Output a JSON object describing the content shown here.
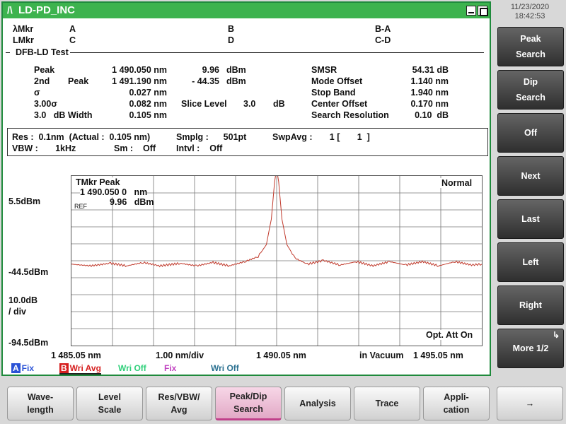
{
  "window": {
    "title": "LD-PD_INC",
    "logo": "/\\"
  },
  "datetime": {
    "date": "11/23/2020",
    "time": "18:42:53"
  },
  "markers": {
    "lambda_mkr": "λMkr",
    "l_mkr": "LMkr",
    "a": "A",
    "b": "B",
    "ba": "B-A",
    "c": "C",
    "d": "D",
    "cd": "C-D"
  },
  "section_title": "DFB-LD Test",
  "results": {
    "peak_label": "Peak",
    "peak_wl": "1 490.050 nm",
    "peak_val": "9.96",
    "peak_unit": "dBm",
    "second_label": "2nd",
    "second_label2": "Peak",
    "second_wl": "1 491.190 nm",
    "second_val": "- 44.35",
    "second_unit": "dBm",
    "sigma_label": "σ",
    "sigma_val": "0.027 nm",
    "sigma3_label": "3.00σ",
    "sigma3_val": "0.082 nm",
    "slice_label": "Slice Level",
    "slice_val": "3.0",
    "slice_unit": "dB",
    "width_label": "3.0   dB Width",
    "width_val": "0.105 nm",
    "smsr_label": "SMSR",
    "smsr_val": "54.31 dB",
    "mode_label": "Mode Offset",
    "mode_val": "1.140 nm",
    "stop_label": "Stop Band",
    "stop_val": "1.940 nm",
    "center_label": "Center Offset",
    "center_val": "0.170 nm",
    "search_label": "Search Resolution",
    "search_val": "0.10  dB"
  },
  "settings": {
    "res": "Res :  0.1nm  (Actual :  0.105 nm)",
    "smplg": "Smplg :      501pt",
    "swpavg": "SwpAvg :       1 [       1  ]",
    "vbw": "VBW :       1kHz",
    "sm": "Sm :    Off",
    "intvl": "Intvl :    Off"
  },
  "plot": {
    "y_top": "5.5dBm",
    "y_mid": "-44.5dBm",
    "y_bottom": "-94.5dBm",
    "y_div": "10.0dB",
    "y_div2": "/ div",
    "x_start": "1 485.05 nm",
    "x_div": "1.00 nm/div",
    "x_center": "1 490.05 nm",
    "x_medium": "in Vacuum",
    "x_end": "1 495.05 nm",
    "mode": "Normal",
    "opt_att": "Opt. Att On",
    "tmkr_label": "TMkr    Peak",
    "tmkr_wl": "1 490.050 0   nm",
    "tmkr_val": "9.96   dBm",
    "ref": "REF",
    "trace_color": "#c0392b"
  },
  "legend": [
    {
      "box": "A",
      "text": "Fix",
      "box_color": "#2a52d6",
      "text_color": "#2a52d6"
    },
    {
      "box": "B",
      "text": "Wri Avg",
      "box_color": "#d61f1f",
      "text_color": "#d61f1f"
    },
    {
      "box": "",
      "text": "Wri Off",
      "box_color": "",
      "text_color": "#2fd07a"
    },
    {
      "box": "",
      "text": "Fix",
      "box_color": "",
      "text_color": "#c040c0"
    },
    {
      "box": "",
      "text": "Wri Off",
      "box_color": "",
      "text_color": "#2a7090"
    }
  ],
  "softkeys": [
    {
      "line1": "Peak",
      "line2": "Search"
    },
    {
      "line1": "Dip",
      "line2": "Search"
    },
    {
      "line1": "Off",
      "line2": ""
    },
    {
      "line1": "Next",
      "line2": ""
    },
    {
      "line1": "Last",
      "line2": ""
    },
    {
      "line1": "Left",
      "line2": ""
    },
    {
      "line1": "Right",
      "line2": ""
    },
    {
      "line1": "More 1/2",
      "line2": "",
      "corner": "↳"
    }
  ],
  "bottom_buttons": [
    {
      "line1": "Wave-",
      "line2": "length"
    },
    {
      "line1": "Level",
      "line2": "Scale"
    },
    {
      "line1": "Res/VBW/",
      "line2": "Avg"
    },
    {
      "line1": "Peak/Dip",
      "line2": "Search"
    },
    {
      "line1": "Analysis",
      "line2": ""
    },
    {
      "line1": "Trace",
      "line2": ""
    },
    {
      "line1": "Appli-",
      "line2": "cation"
    },
    {
      "line1": "→",
      "line2": ""
    }
  ],
  "chart_data": {
    "type": "line",
    "xlabel": "",
    "ylabel": "",
    "xlim": [
      1485.05,
      1495.05
    ],
    "ylim": [
      -94.5,
      5.5
    ],
    "x": [
      1485.05,
      1485.5,
      1486.0,
      1486.4,
      1486.8,
      1487.2,
      1487.7,
      1488.1,
      1488.5,
      1488.9,
      1489.3,
      1489.6,
      1489.8,
      1489.92,
      1490.0,
      1490.05,
      1490.1,
      1490.18,
      1490.3,
      1490.5,
      1490.8,
      1491.19,
      1491.6,
      1492.0,
      1492.4,
      1492.8,
      1493.2,
      1493.6,
      1494.0,
      1494.4,
      1494.8,
      1495.05
    ],
    "y": [
      -46.5,
      -47.5,
      -46.0,
      -47.5,
      -45.5,
      -47.5,
      -46.0,
      -47.5,
      -45.5,
      -47.5,
      -44.8,
      -42.0,
      -35.0,
      -20.0,
      2.0,
      9.96,
      2.0,
      -20.0,
      -35.0,
      -43.0,
      -46.5,
      -44.35,
      -47.0,
      -45.0,
      -47.5,
      -45.0,
      -47.0,
      -45.0,
      -47.5,
      -45.0,
      -47.0,
      -46.5
    ]
  }
}
